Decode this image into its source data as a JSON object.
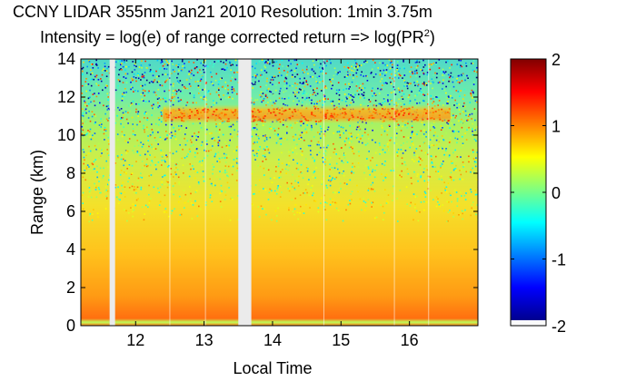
{
  "chart_data": {
    "type": "heatmap",
    "title": "CCNY LIDAR 355nm Jan21 2010 Resolution: 1min 3.75m",
    "subtitle_prefix": "Intensity = log(e) of range corrected return => log(PR",
    "subtitle_sup": "2",
    "subtitle_suffix": ")",
    "xlabel": "Local Time",
    "ylabel": "Range (km)",
    "xlim": [
      11.2,
      17.0
    ],
    "ylim": [
      0,
      14
    ],
    "xticks": [
      12,
      13,
      14,
      15,
      16
    ],
    "yticks": [
      0,
      2,
      4,
      6,
      8,
      10,
      12,
      14
    ],
    "colorbar": {
      "range": [
        -2,
        2
      ],
      "ticks": [
        2,
        1,
        0,
        -1,
        -2
      ],
      "colormap": "jet"
    },
    "no_data_gaps": [
      [
        11.62,
        11.7
      ],
      [
        13.5,
        13.69
      ]
    ],
    "features": [
      {
        "type": "cloud_layer",
        "time_range": [
          12.4,
          16.6
        ],
        "range_km": [
          10.6,
          11.6
        ]
      },
      {
        "type": "boundary_layer",
        "range_km": [
          0,
          1.5
        ]
      }
    ]
  }
}
